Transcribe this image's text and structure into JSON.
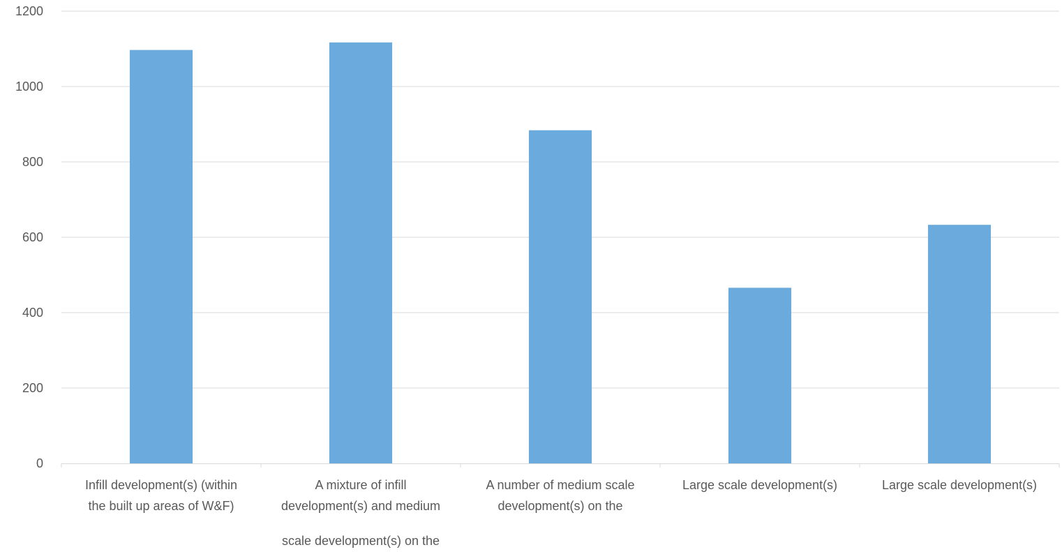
{
  "chart_data": {
    "type": "bar",
    "title": "",
    "xlabel": "",
    "ylabel": "",
    "ylim": [
      0,
      1200
    ],
    "yticks": [
      0,
      200,
      400,
      600,
      800,
      1000,
      1200
    ],
    "grid": true,
    "legend": "none",
    "bar_color": "#6AAADC",
    "categories": [
      [
        "Infill development(s) (within",
        "the built up areas of W&F)"
      ],
      [
        "A mixture of infill",
        "development(s) and medium",
        "scale development(s) on the"
      ],
      [
        "A number of medium scale",
        "development(s) on the"
      ],
      [
        "Large scale development(s)"
      ],
      [
        "Large scale development(s)"
      ]
    ],
    "values": [
      1097,
      1117,
      884,
      466,
      633
    ]
  }
}
